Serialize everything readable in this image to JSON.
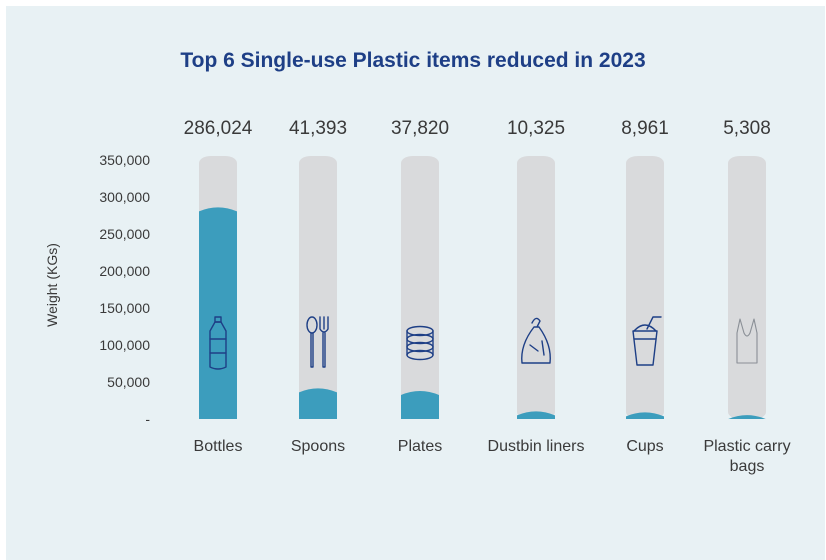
{
  "chart_data": {
    "type": "bar",
    "title": "Top 6 Single-use Plastic items reduced in 2023",
    "xlabel": "",
    "ylabel": "Weight (KGs)",
    "ylim": [
      0,
      350000
    ],
    "yticks": [
      {
        "value": 0,
        "label": "-"
      },
      {
        "value": 50000,
        "label": "50,000"
      },
      {
        "value": 100000,
        "label": "100,000"
      },
      {
        "value": 150000,
        "label": "150,000"
      },
      {
        "value": 200000,
        "label": "200,000"
      },
      {
        "value": 250000,
        "label": "250,000"
      },
      {
        "value": 300000,
        "label": "300,000"
      },
      {
        "value": 350000,
        "label": "350,000"
      }
    ],
    "categories": [
      "Bottles",
      "Spoons",
      "Plates",
      "Dustbin liners",
      "Cups",
      "Plastic carry bags"
    ],
    "values": [
      286024,
      41393,
      37820,
      10325,
      8961,
      5308
    ],
    "value_labels": [
      "286,024",
      "41,393",
      "37,820",
      "10,325",
      "8,961",
      "5,308"
    ],
    "icons": [
      "bottle-icon",
      "spoon-fork-icon",
      "plates-icon",
      "dustbin-bag-icon",
      "cup-icon",
      "carry-bag-icon"
    ],
    "colors": {
      "bar": "#3c9dbd",
      "track": "#d9dadc",
      "title": "#1e3f86",
      "icon": "#1e3f86",
      "text": "#3a3a3a"
    },
    "grid": false
  }
}
